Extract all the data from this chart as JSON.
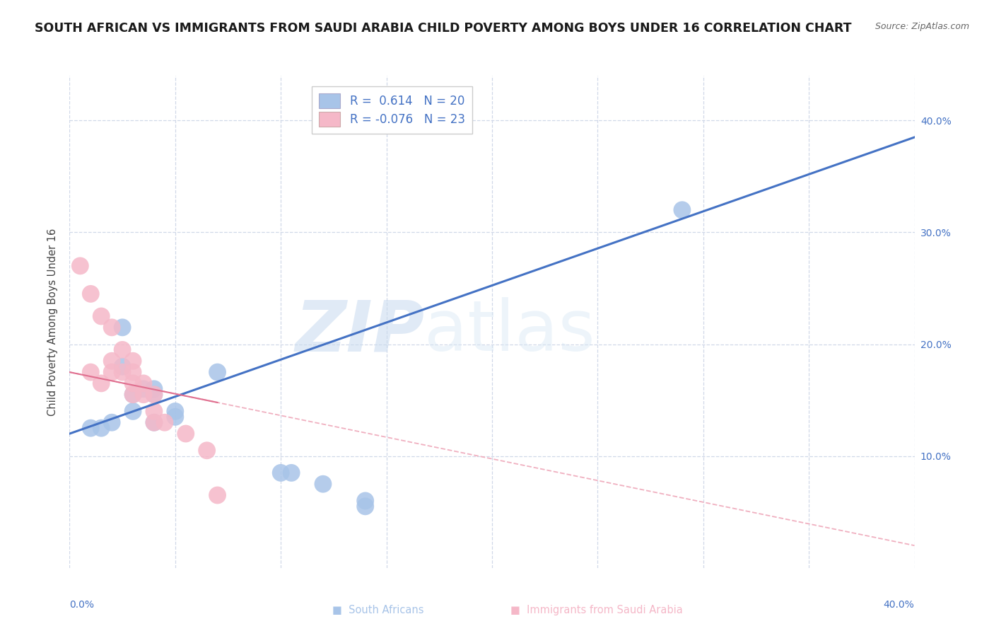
{
  "title": "SOUTH AFRICAN VS IMMIGRANTS FROM SAUDI ARABIA CHILD POVERTY AMONG BOYS UNDER 16 CORRELATION CHART",
  "source": "Source: ZipAtlas.com",
  "ylabel": "Child Poverty Among Boys Under 16",
  "xlim": [
    0.0,
    0.4
  ],
  "ylim": [
    0.0,
    0.44
  ],
  "xticks": [
    0.0,
    0.05,
    0.1,
    0.15,
    0.2,
    0.25,
    0.3,
    0.35,
    0.4
  ],
  "yticks": [
    0.1,
    0.2,
    0.3,
    0.4
  ],
  "blue_color": "#a8c4e8",
  "pink_color": "#f5b8c8",
  "blue_line_color": "#4472c4",
  "pink_line_color": "#e07090",
  "pink_line_dash_color": "#f0b0c0",
  "R_blue": 0.614,
  "N_blue": 20,
  "R_pink": -0.076,
  "N_pink": 23,
  "blue_scatter_x": [
    0.01,
    0.015,
    0.02,
    0.025,
    0.025,
    0.03,
    0.03,
    0.035,
    0.04,
    0.04,
    0.04,
    0.05,
    0.05,
    0.07,
    0.1,
    0.105,
    0.12,
    0.29,
    0.14,
    0.14
  ],
  "blue_scatter_y": [
    0.125,
    0.125,
    0.13,
    0.18,
    0.215,
    0.14,
    0.155,
    0.16,
    0.155,
    0.13,
    0.16,
    0.135,
    0.14,
    0.175,
    0.085,
    0.085,
    0.075,
    0.32,
    0.06,
    0.055
  ],
  "pink_scatter_x": [
    0.005,
    0.01,
    0.01,
    0.015,
    0.015,
    0.02,
    0.02,
    0.02,
    0.025,
    0.025,
    0.03,
    0.03,
    0.03,
    0.03,
    0.035,
    0.035,
    0.04,
    0.04,
    0.04,
    0.045,
    0.055,
    0.065,
    0.07
  ],
  "pink_scatter_y": [
    0.27,
    0.245,
    0.175,
    0.225,
    0.165,
    0.215,
    0.185,
    0.175,
    0.195,
    0.175,
    0.185,
    0.175,
    0.165,
    0.155,
    0.165,
    0.155,
    0.155,
    0.13,
    0.14,
    0.13,
    0.12,
    0.105,
    0.065
  ],
  "blue_line_x0": 0.0,
  "blue_line_y0": 0.12,
  "blue_line_x1": 0.4,
  "blue_line_y1": 0.385,
  "pink_line_x0": 0.0,
  "pink_line_y0": 0.175,
  "pink_line_x1": 0.4,
  "pink_line_y1": 0.02,
  "watermark_zip": "ZIP",
  "watermark_atlas": "atlas",
  "background_color": "#ffffff",
  "grid_color": "#d0d8e8",
  "title_fontsize": 12.5,
  "axis_label_fontsize": 10.5,
  "tick_fontsize": 10,
  "legend_fontsize": 12,
  "tick_color": "#4472c4",
  "label_color": "#555555"
}
